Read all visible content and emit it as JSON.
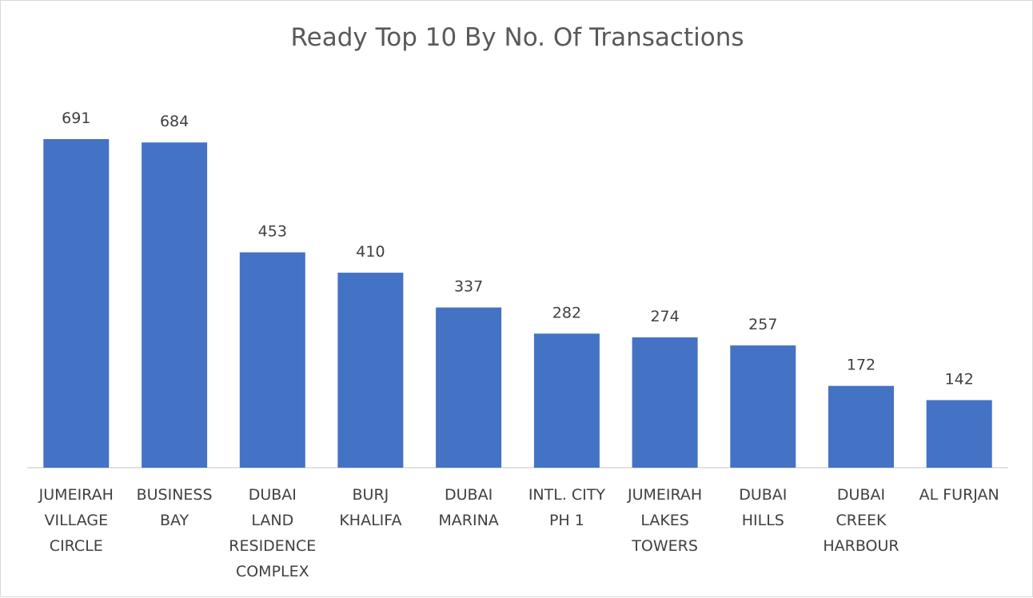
{
  "chart_data": {
    "type": "bar",
    "title": "Ready Top 10 By No. Of Transactions",
    "categories": [
      [
        "JUMEIRAH",
        "VILLAGE",
        "CIRCLE"
      ],
      [
        "BUSINESS",
        "BAY"
      ],
      [
        "DUBAI",
        "LAND",
        "RESIDENCE",
        "COMPLEX"
      ],
      [
        "BURJ",
        "KHALIFA"
      ],
      [
        "DUBAI",
        "MARINA"
      ],
      [
        "INTL. CITY",
        "PH 1"
      ],
      [
        "JUMEIRAH",
        "LAKES",
        "TOWERS"
      ],
      [
        "DUBAI",
        "HILLS"
      ],
      [
        "DUBAI",
        "CREEK",
        "HARBOUR"
      ],
      [
        "AL FURJAN"
      ]
    ],
    "values": [
      691,
      684,
      453,
      410,
      337,
      282,
      274,
      257,
      172,
      142
    ],
    "ylim": [
      0,
      691
    ],
    "grid": false,
    "data_labels": true,
    "bar_color": "#4472C4",
    "axis_color": "#D9D9D9",
    "text_color": "#404040"
  }
}
